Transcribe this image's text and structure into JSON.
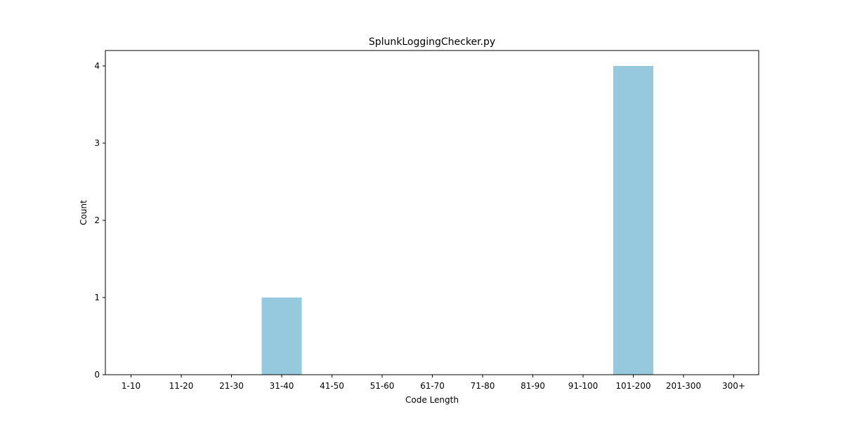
{
  "chart_data": {
    "type": "bar",
    "title": "SplunkLoggingChecker.py",
    "xlabel": "Code Length",
    "ylabel": "Count",
    "categories": [
      "1-10",
      "11-20",
      "21-30",
      "31-40",
      "41-50",
      "51-60",
      "61-70",
      "71-80",
      "81-90",
      "91-100",
      "101-200",
      "201-300",
      "300+"
    ],
    "values": [
      0,
      0,
      0,
      1,
      0,
      0,
      0,
      0,
      0,
      0,
      4,
      0,
      0
    ],
    "ylim": [
      0,
      4.2
    ],
    "yticks": [
      0,
      1,
      2,
      3,
      4
    ],
    "grid": false,
    "legend": "none",
    "bar_color": "#96c9dd"
  }
}
